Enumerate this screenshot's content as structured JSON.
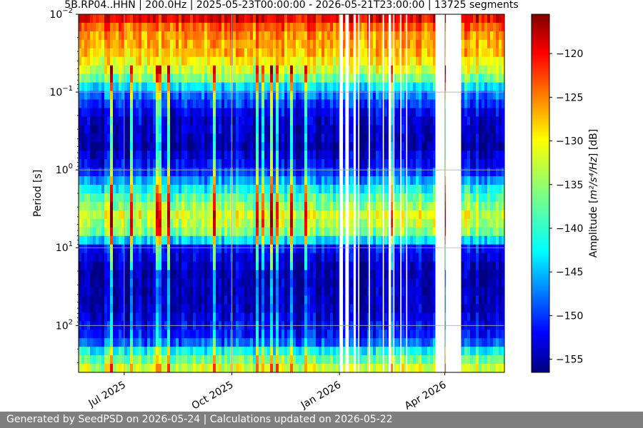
{
  "footer": {
    "text": "Generated by SeedPSD on 2026-05-24 | Calculations updated on 2026-05-22"
  },
  "chart_data": {
    "type": "heatmap",
    "title": "5B.RP04..HHN | 200.0Hz | 2025-05-23T00:00:00 - 2026-05-21T23:00:00 | 13725 segments",
    "xlabel": "",
    "ylabel": "Period [s]",
    "colorbar_label_prefix": "Amplitude [",
    "colorbar_label_units": "m²/s⁴/Hz",
    "colorbar_label_suffix": "] [dB]",
    "colormap": "jet",
    "grid": true,
    "x_range": [
      "2025-05-23",
      "2026-05-21"
    ],
    "x_ticks": [
      {
        "date": "2025-07-01",
        "label": "Jul 2025"
      },
      {
        "date": "2025-10-01",
        "label": "Oct 2025"
      },
      {
        "date": "2026-01-01",
        "label": "Jan 2026"
      },
      {
        "date": "2026-04-01",
        "label": "Apr 2026"
      }
    ],
    "y_scale": "log",
    "y_inverted": true,
    "y_range_seconds": [
      0.01,
      400
    ],
    "y_ticks": [
      {
        "value": 0.01,
        "base": "10",
        "exp": "−2"
      },
      {
        "value": 0.1,
        "base": "10",
        "exp": "−1"
      },
      {
        "value": 1,
        "base": "10",
        "exp": "0"
      },
      {
        "value": 10,
        "base": "10",
        "exp": "1"
      },
      {
        "value": 100,
        "base": "10",
        "exp": "2"
      }
    ],
    "colorbar_range_db": [
      -156.5,
      -115.5
    ],
    "colorbar_ticks": [
      -120,
      -125,
      -130,
      -135,
      -140,
      -145,
      -150,
      -155
    ],
    "colorbar_tick_labels": [
      "−120",
      "−125",
      "−130",
      "−135",
      "−140",
      "−145",
      "−150",
      "−155"
    ],
    "data_gaps": [
      {
        "start": "2026-01-01",
        "end": "2026-01-04"
      },
      {
        "start": "2026-01-06",
        "end": "2026-01-09"
      },
      {
        "start": "2026-01-13",
        "end": "2026-01-15"
      },
      {
        "start": "2026-01-17",
        "end": "2026-01-18"
      },
      {
        "start": "2026-01-26",
        "end": "2026-01-27"
      },
      {
        "start": "2026-02-07",
        "end": "2026-02-08"
      },
      {
        "start": "2026-02-12",
        "end": "2026-02-14"
      },
      {
        "start": "2026-02-16",
        "end": "2026-02-17"
      },
      {
        "start": "2026-02-22",
        "end": "2026-02-23"
      },
      {
        "start": "2026-02-27",
        "end": "2026-02-28"
      },
      {
        "start": "2026-03-24",
        "end": "2026-04-01"
      },
      {
        "start": "2026-04-02",
        "end": "2026-04-15"
      }
    ],
    "median_profile": [
      {
        "period_s": 0.01,
        "db": -118
      },
      {
        "period_s": 0.016,
        "db": -126
      },
      {
        "period_s": 0.03,
        "db": -128
      },
      {
        "period_s": 0.06,
        "db": -134
      },
      {
        "period_s": 0.1,
        "db": -146
      },
      {
        "period_s": 0.2,
        "db": -153
      },
      {
        "period_s": 0.5,
        "db": -155
      },
      {
        "period_s": 1,
        "db": -150
      },
      {
        "period_s": 2,
        "db": -139
      },
      {
        "period_s": 4,
        "db": -132
      },
      {
        "period_s": 7,
        "db": -137
      },
      {
        "period_s": 10,
        "db": -151
      },
      {
        "period_s": 20,
        "db": -155
      },
      {
        "period_s": 60,
        "db": -154
      },
      {
        "period_s": 150,
        "db": -150
      },
      {
        "period_s": 220,
        "db": -140
      },
      {
        "period_s": 400,
        "db": -131
      }
    ]
  }
}
